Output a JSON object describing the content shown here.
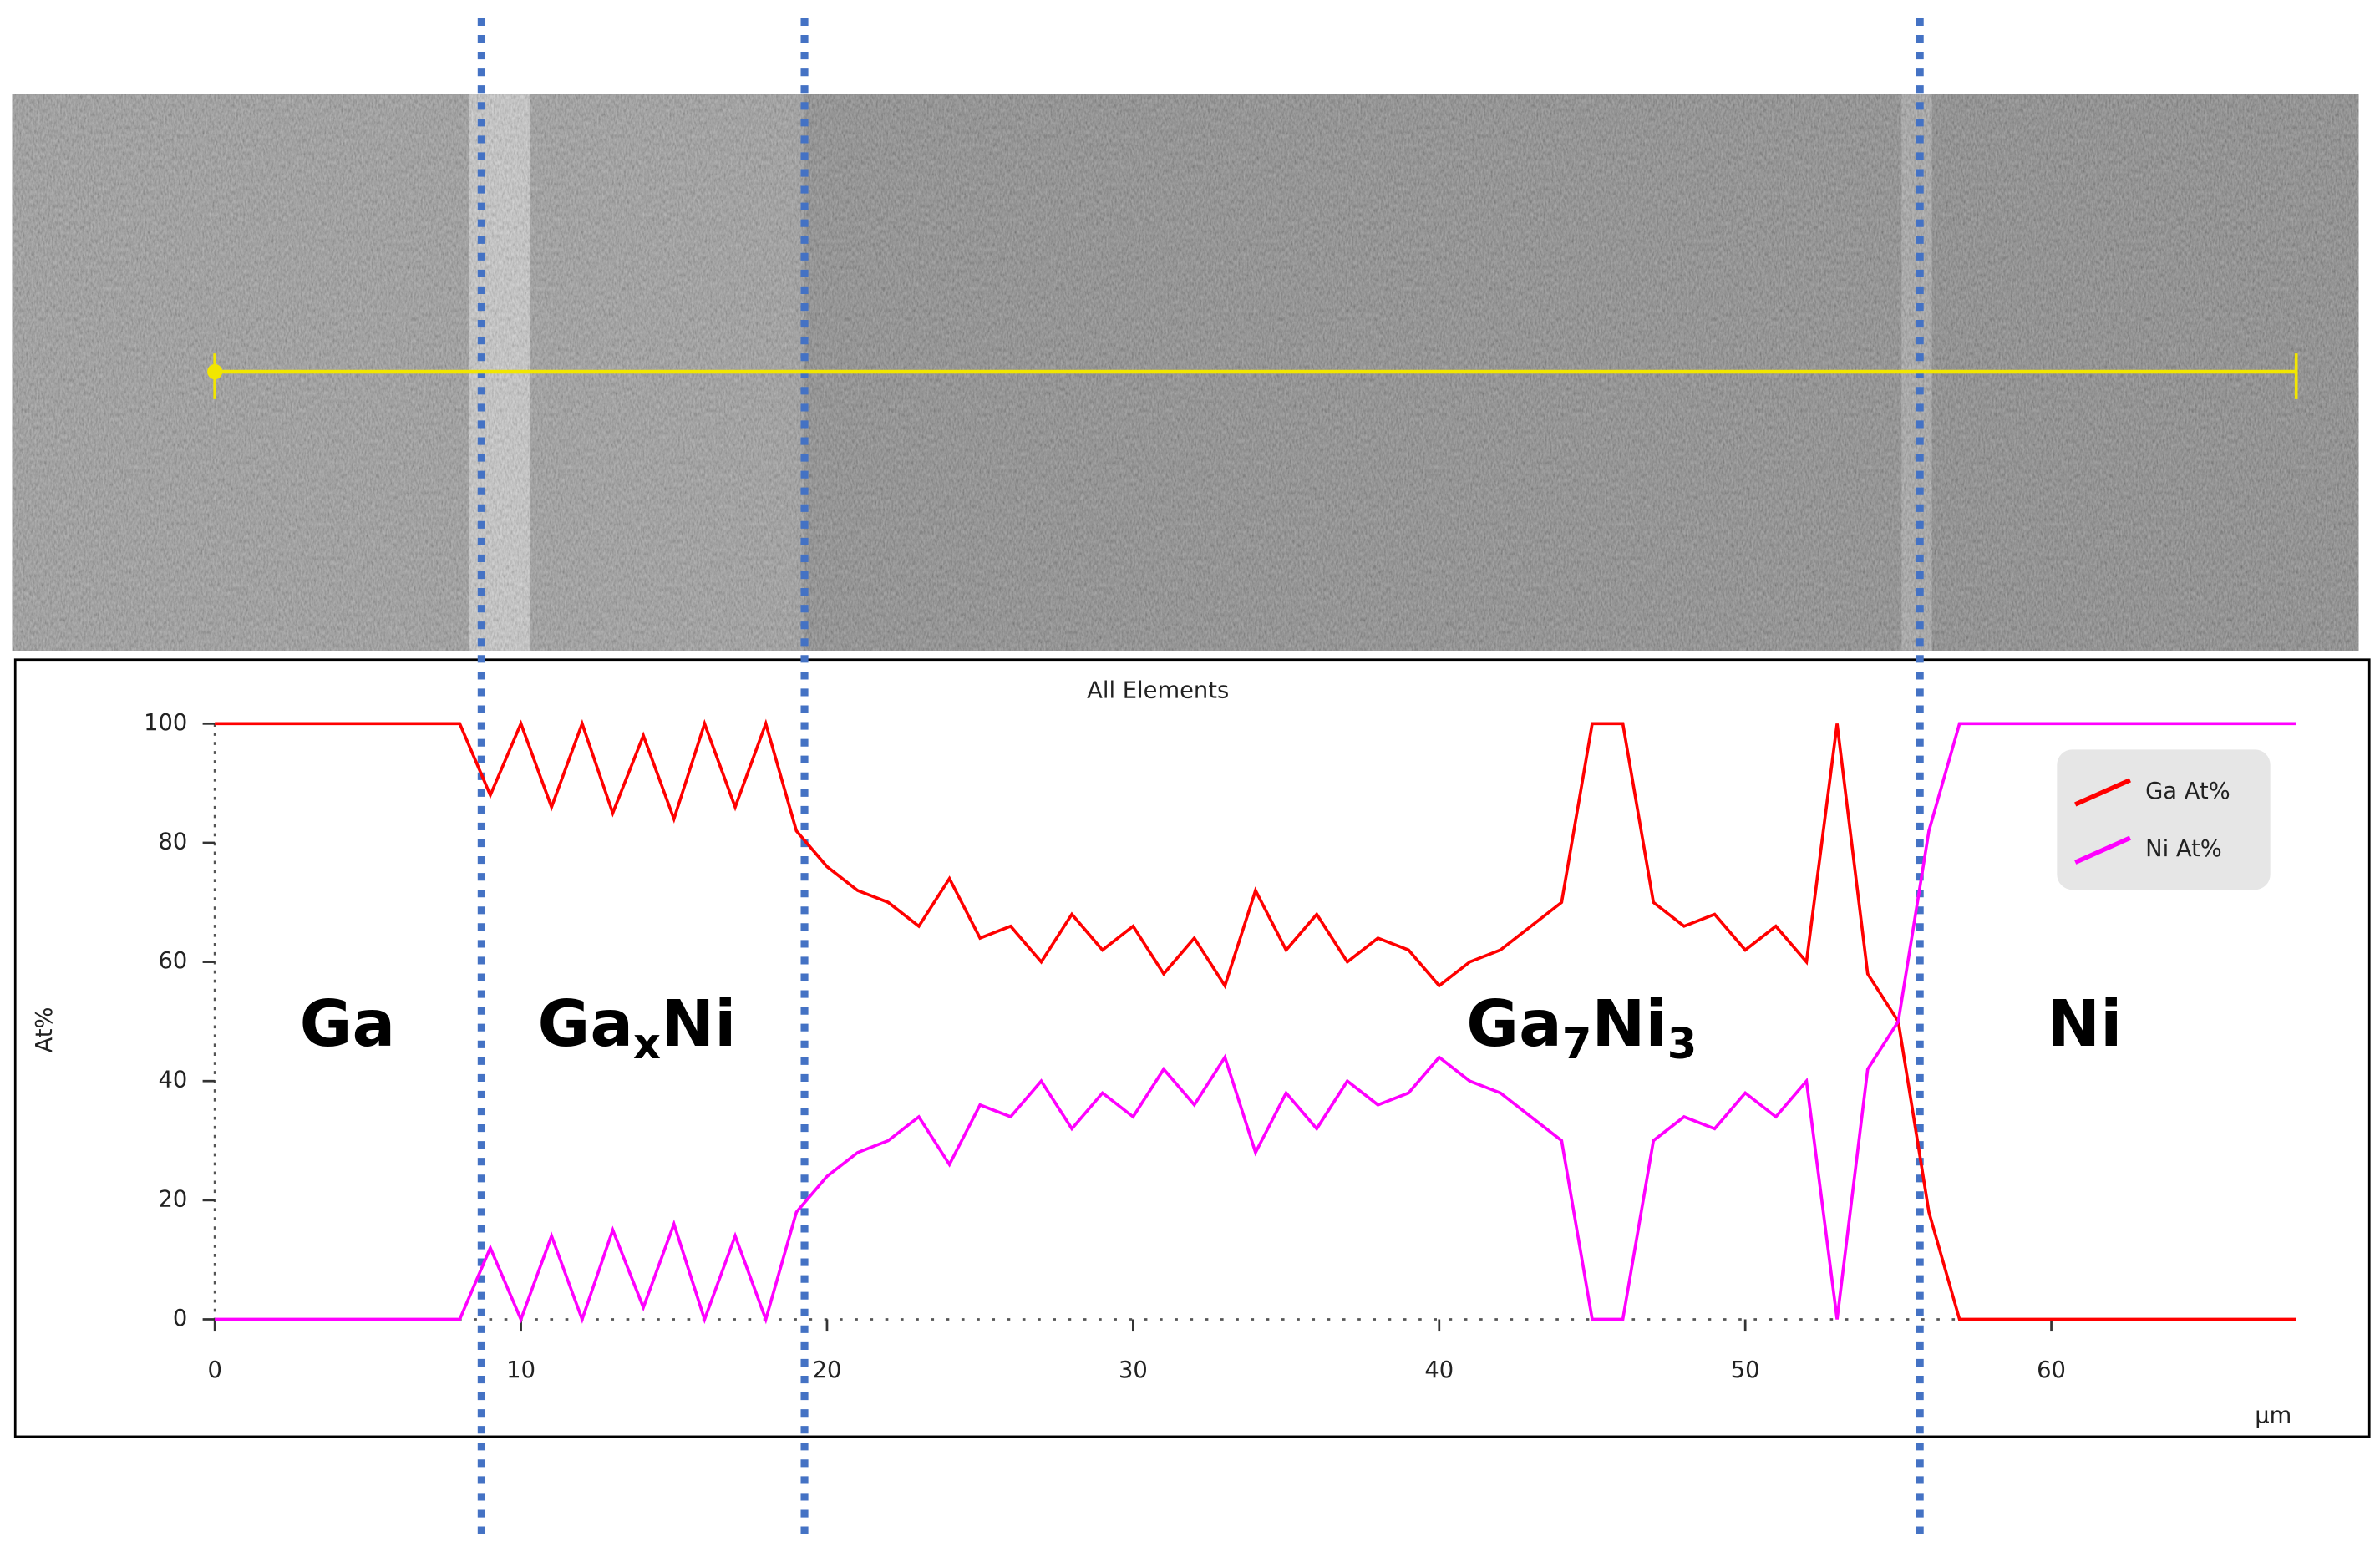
{
  "chart_data": {
    "type": "line",
    "title": "All Elements",
    "y_label": "At%",
    "x_label": "µm",
    "x": [
      0,
      1,
      2,
      3,
      4,
      5,
      6,
      7,
      8,
      9,
      10,
      11,
      12,
      13,
      14,
      15,
      16,
      17,
      18,
      19,
      20,
      21,
      22,
      23,
      24,
      25,
      26,
      27,
      28,
      29,
      30,
      31,
      32,
      33,
      34,
      35,
      36,
      37,
      38,
      39,
      40,
      41,
      42,
      43,
      44,
      45,
      46,
      47,
      48,
      49,
      50,
      51,
      52,
      53,
      54,
      55,
      56,
      57,
      58,
      59,
      60,
      61,
      62,
      63,
      64,
      65,
      66,
      67,
      68
    ],
    "series": [
      {
        "name": "Ga At%",
        "color": "#ff0000",
        "values": [
          100,
          100,
          100,
          100,
          100,
          100,
          100,
          100,
          100,
          88,
          100,
          86,
          100,
          85,
          98,
          84,
          100,
          86,
          100,
          82,
          76,
          72,
          70,
          66,
          74,
          64,
          66,
          60,
          68,
          62,
          66,
          58,
          64,
          56,
          72,
          62,
          68,
          60,
          64,
          62,
          56,
          60,
          62,
          66,
          70,
          100,
          100,
          70,
          66,
          68,
          62,
          66,
          60,
          100,
          58,
          50,
          18,
          0,
          0,
          0,
          0,
          0,
          0,
          0,
          0,
          0,
          0,
          0,
          0
        ]
      },
      {
        "name": "Ni At%",
        "color": "#ff00ff",
        "values": [
          0,
          0,
          0,
          0,
          0,
          0,
          0,
          0,
          0,
          12,
          0,
          14,
          0,
          15,
          2,
          16,
          0,
          14,
          0,
          18,
          24,
          28,
          30,
          34,
          26,
          36,
          34,
          40,
          32,
          38,
          34,
          42,
          36,
          44,
          28,
          38,
          32,
          40,
          36,
          38,
          44,
          40,
          38,
          34,
          30,
          0,
          0,
          30,
          34,
          32,
          38,
          34,
          40,
          0,
          42,
          50,
          82,
          100,
          100,
          100,
          100,
          100,
          100,
          100,
          100,
          100,
          100,
          100,
          100
        ]
      }
    ],
    "xlim": [
      0,
      68
    ],
    "xticks": [
      0,
      10,
      20,
      30,
      40,
      50,
      60
    ],
    "ylim": [
      0,
      100
    ],
    "yticks": [
      0,
      20,
      40,
      60,
      80,
      100
    ],
    "annotations": [
      [
        "Ga"
      ],
      [
        "Ga",
        "x",
        "Ni"
      ],
      [
        "Ga",
        "7",
        "Ni",
        "3"
      ],
      [
        "Ni"
      ]
    ]
  }
}
